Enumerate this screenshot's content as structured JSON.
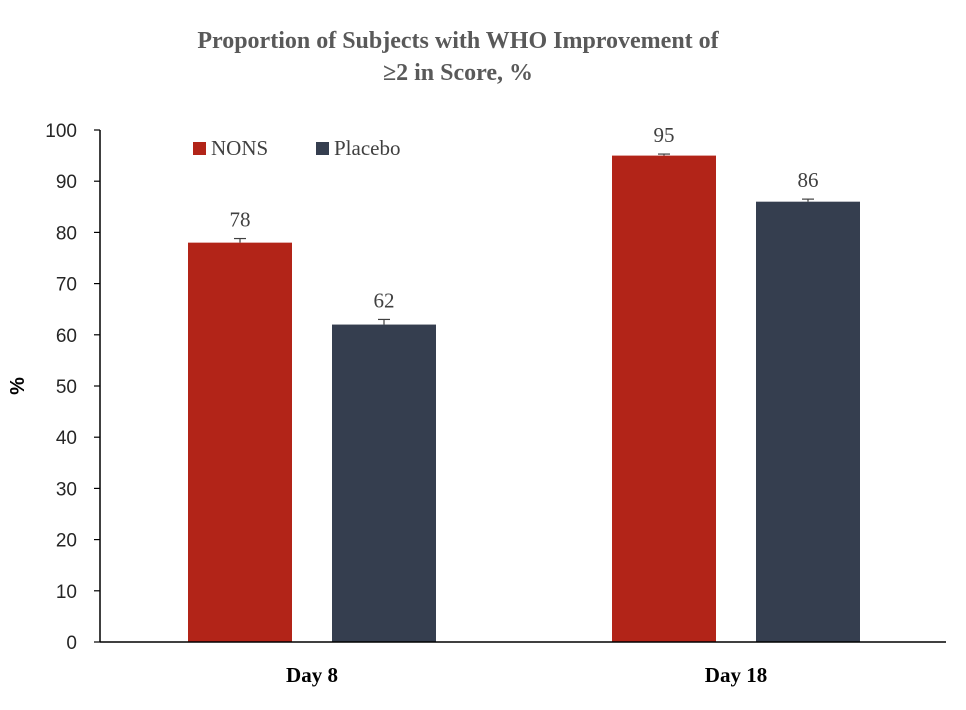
{
  "chart_data": {
    "type": "bar",
    "title_lines": [
      "Proportion of Subjects with WHO Improvement of",
      "≥2 in Score, %"
    ],
    "xlabel": "",
    "ylabel": "%",
    "categories": [
      "Day 8",
      "Day 18"
    ],
    "series": [
      {
        "name": "NONS",
        "values": [
          78,
          95
        ],
        "error": [
          0.8,
          0.3
        ]
      },
      {
        "name": "Placebo",
        "values": [
          62,
          86
        ],
        "error": [
          1.0,
          0.5
        ]
      }
    ],
    "ylim": [
      0,
      100
    ],
    "yticks": [
      0,
      10,
      20,
      30,
      40,
      50,
      60,
      70,
      80,
      90,
      100
    ],
    "grid": false,
    "legend_position": "top-left"
  },
  "colors": {
    "NONS": "#b22418",
    "Placebo": "#353e4f",
    "axis": "#000000",
    "title": "#595959"
  }
}
